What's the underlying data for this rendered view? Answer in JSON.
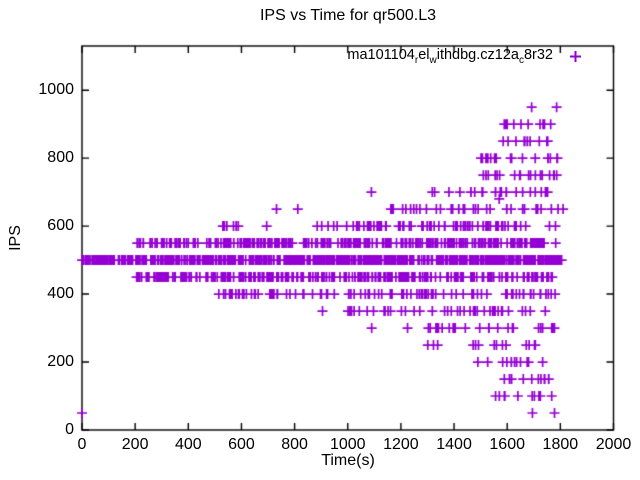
{
  "figure": {
    "title": "IPS vs Time for qr500.L3",
    "background_color": "#ffffff",
    "border_color": "#000000"
  },
  "axes": {
    "x": {
      "label": "Time(s)",
      "min": 0,
      "max": 2000,
      "ticks": [
        0,
        200,
        400,
        600,
        800,
        1000,
        1200,
        1400,
        1600,
        1800,
        2000
      ]
    },
    "y": {
      "label": "IPS",
      "min": 0,
      "max": 1130,
      "ticks": [
        0,
        200,
        400,
        600,
        800,
        1000
      ]
    }
  },
  "legend": {
    "label_text": "ma101104_rel_withdbg.cz12a_c8r32",
    "label_parts": [
      {
        "text": "ma101104"
      },
      {
        "sub": "r"
      },
      {
        "text": "el"
      },
      {
        "sub": "w"
      },
      {
        "text": "ithdbg.cz12a"
      },
      {
        "sub": "c"
      },
      {
        "text": "8r32"
      }
    ],
    "marker": "plus",
    "position": "top-right-inside"
  },
  "chart_data": {
    "type": "scatter",
    "title": "IPS vs Time for qr500.L3",
    "xlabel": "Time(s)",
    "ylabel": "IPS",
    "xlim": [
      0,
      2000
    ],
    "ylim": [
      0,
      1130
    ],
    "grid": false,
    "marker": "plus",
    "series": [
      {
        "name": "ma101104_rel_withdbg.cz12a_c8r32",
        "color": "#9400d3",
        "description": "IPS values are quantized into horizontal bands; dense solid band at 500 across full run, dense bands at 450/550 from ~200s, spread widens after ~1300s from 50 up to 950",
        "bands": [
          {
            "ips": 500,
            "t_start": 0,
            "t_end": 1805,
            "count": 650
          },
          {
            "ips": 550,
            "t_start": 205,
            "t_end": 1788,
            "count": 280
          },
          {
            "ips": 450,
            "t_start": 205,
            "t_end": 1775,
            "count": 255
          },
          {
            "ips": 400,
            "t_start": 490,
            "t_end": 1782,
            "count": 95
          },
          {
            "ips": 600,
            "t_start": 1015,
            "t_end": 1800,
            "count": 72
          },
          {
            "ips": 650,
            "t_start": 1150,
            "t_end": 1812,
            "count": 38
          },
          {
            "ips": 350,
            "t_start": 1000,
            "t_end": 1795,
            "count": 42
          },
          {
            "ips": 300,
            "t_start": 1300,
            "t_end": 1782,
            "count": 26
          },
          {
            "ips": 700,
            "t_start": 1316,
            "t_end": 1790,
            "count": 24
          },
          {
            "ips": 750,
            "t_start": 1488,
            "t_end": 1800,
            "count": 20
          },
          {
            "ips": 800,
            "t_start": 1484,
            "t_end": 1806,
            "count": 19
          },
          {
            "ips": 250,
            "t_start": 1300,
            "t_end": 1745,
            "count": 14
          },
          {
            "ips": 200,
            "t_start": 1488,
            "t_end": 1756,
            "count": 14
          },
          {
            "ips": 900,
            "t_start": 1550,
            "t_end": 1792,
            "count": 12
          },
          {
            "ips": 850,
            "t_start": 1558,
            "t_end": 1762,
            "count": 11
          },
          {
            "ips": 150,
            "t_start": 1580,
            "t_end": 1782,
            "count": 12
          },
          {
            "ips": 100,
            "t_start": 1548,
            "t_end": 1795,
            "count": 10
          }
        ],
        "points": [
          [
            0,
            50
          ],
          [
            530,
            600
          ],
          [
            536,
            600
          ],
          [
            545,
            600
          ],
          [
            570,
            600
          ],
          [
            580,
            600
          ],
          [
            588,
            600
          ],
          [
            695,
            600
          ],
          [
            885,
            600
          ],
          [
            902,
            600
          ],
          [
            926,
            600
          ],
          [
            947,
            600
          ],
          [
            960,
            600
          ],
          [
            996,
            600
          ],
          [
            732,
            650
          ],
          [
            812,
            650
          ],
          [
            905,
            350
          ],
          [
            1089,
            700
          ],
          [
            1090,
            300
          ],
          [
            1225,
            300
          ],
          [
            1570,
            680
          ],
          [
            1692,
            950
          ],
          [
            1786,
            950
          ],
          [
            1695,
            50
          ],
          [
            1778,
            50
          ]
        ]
      }
    ]
  }
}
